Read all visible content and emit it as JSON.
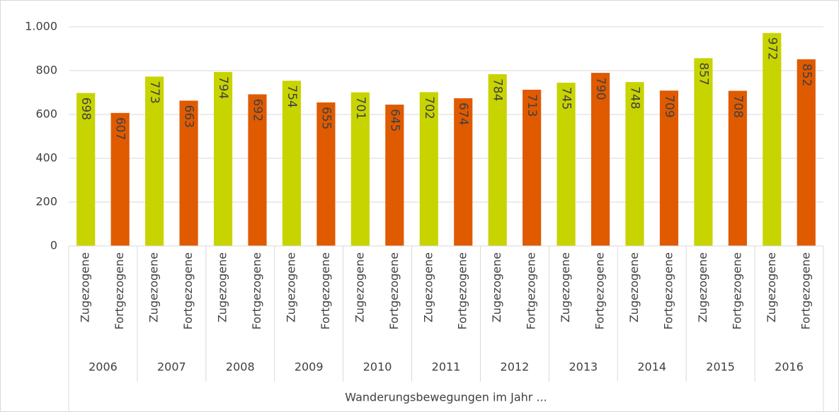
{
  "chart_data": {
    "type": "bar",
    "categories": [
      "2006",
      "2007",
      "2008",
      "2009",
      "2010",
      "2011",
      "2012",
      "2013",
      "2014",
      "2015",
      "2016"
    ],
    "series": [
      {
        "name": "Zugezogene",
        "color": "#c8d400",
        "values": [
          698,
          773,
          794,
          754,
          701,
          702,
          784,
          745,
          748,
          857,
          972
        ]
      },
      {
        "name": "Fortgezogene",
        "color": "#e05a00",
        "values": [
          607,
          663,
          692,
          655,
          645,
          674,
          713,
          790,
          709,
          708,
          852
        ]
      }
    ],
    "x_label": "Wanderungsbewegungen im Jahr ...",
    "ylim": [
      0,
      1000
    ],
    "yticks": [
      0,
      200,
      400,
      600,
      800,
      {
        "value": 1000,
        "label": "1.000"
      }
    ],
    "grid": true
  }
}
